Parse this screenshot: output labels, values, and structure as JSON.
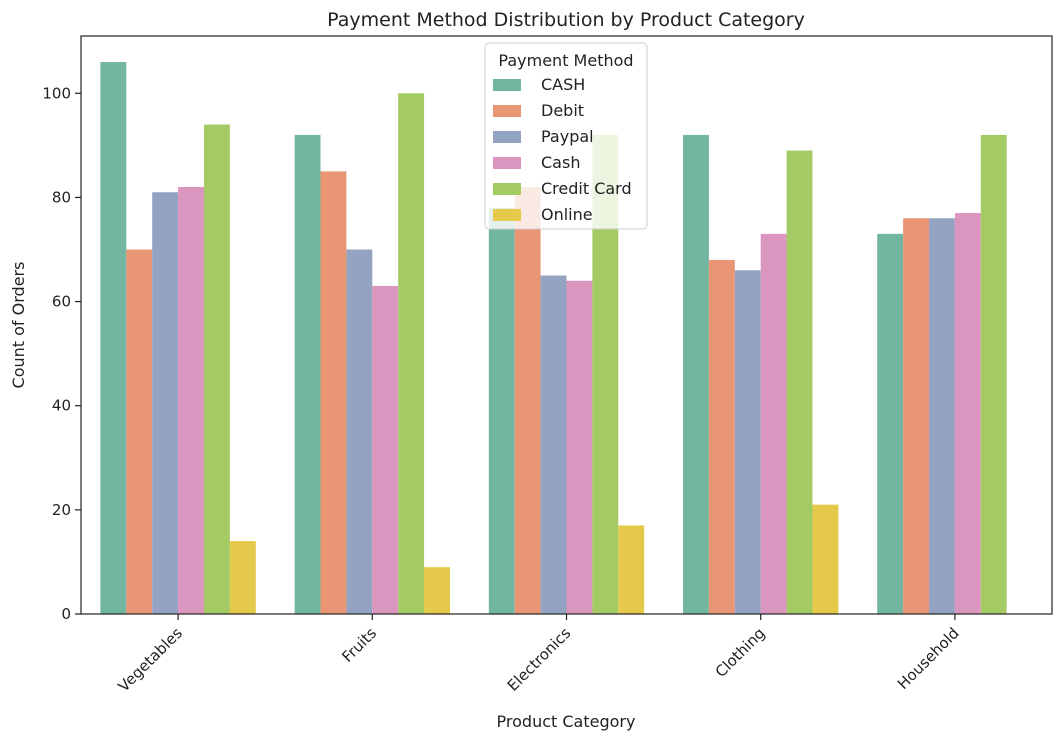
{
  "chart_data": {
    "type": "bar",
    "title": "Payment Method Distribution by Product Category",
    "xlabel": "Product Category",
    "ylabel": "Count of Orders",
    "categories": [
      "Vegetables",
      "Fruits",
      "Electronics",
      "Clothing",
      "Household"
    ],
    "series": [
      {
        "name": "CASH",
        "color": "#72b6a1",
        "values": [
          106,
          92,
          78,
          92,
          73
        ]
      },
      {
        "name": "Debit",
        "color": "#e99675",
        "values": [
          70,
          85,
          82,
          68,
          76
        ]
      },
      {
        "name": "Paypal",
        "color": "#95a3c3",
        "values": [
          81,
          70,
          65,
          66,
          76
        ]
      },
      {
        "name": "Cash",
        "color": "#db96c0",
        "values": [
          82,
          63,
          64,
          73,
          77
        ]
      },
      {
        "name": "Credit Card",
        "color": "#a4cb63",
        "values": [
          94,
          100,
          92,
          89,
          92
        ]
      },
      {
        "name": "Online",
        "color": "#e5c94a",
        "values": [
          14,
          9,
          17,
          21,
          0
        ]
      }
    ],
    "ylim": [
      0,
      111
    ],
    "yticks": [
      0,
      20,
      40,
      60,
      80,
      100
    ],
    "grid": false,
    "legend": {
      "title": "Payment Method",
      "placement": "upper-center"
    }
  }
}
